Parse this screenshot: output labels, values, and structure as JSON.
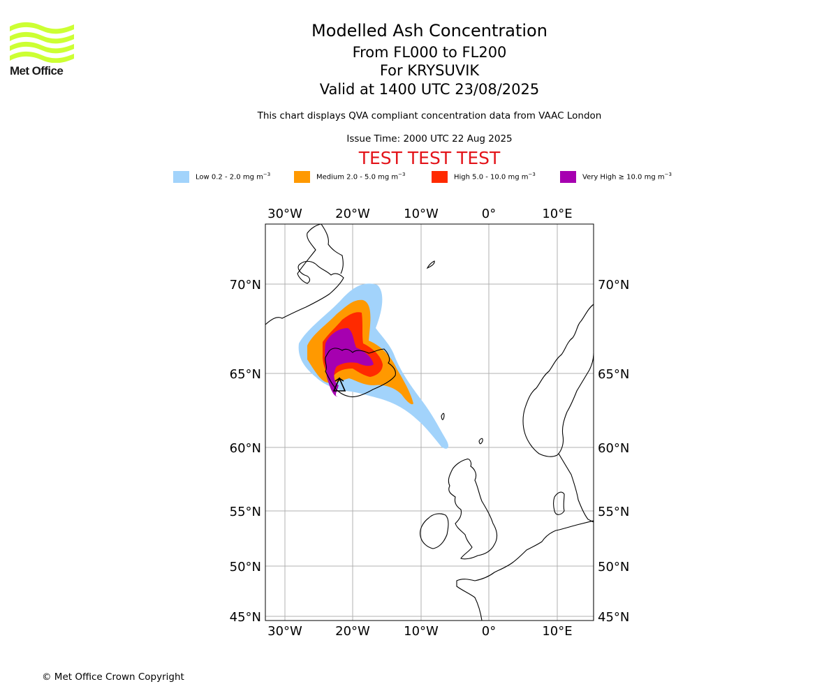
{
  "brand": {
    "name": "Met Office",
    "logo_color": "#ccff33"
  },
  "title": {
    "line1": "Modelled Ash Concentration",
    "line2": "From FL000 to FL200",
    "line3": "For KRYSUVIK",
    "line4": "Valid at 1400 UTC 23/08/2025"
  },
  "subtitle": "This chart displays QVA compliant concentration data from VAAC London",
  "issue_time": "Issue Time: 2000 UTC 22 Aug 2025",
  "test_banner": "TEST TEST TEST",
  "legend": [
    {
      "label": "Low 0.2 - 2.0 mg m",
      "color": "#a2d3fb"
    },
    {
      "label": "Medium 2.0 - 5.0 mg m",
      "color": "#ff9900"
    },
    {
      "label": "High 5.0 - 10.0 mg m",
      "color": "#ff2a00"
    },
    {
      "label": "Very High ≥ 10.0 mg m",
      "color": "#a600b0"
    }
  ],
  "legend_unit_exponent": "−3",
  "map": {
    "projection": "equirectangular",
    "gridlines": true,
    "longitude_ticks": [
      "30°W",
      "20°W",
      "10°W",
      "0°",
      "10°E"
    ],
    "latitude_ticks": [
      "70°N",
      "65°N",
      "60°N",
      "55°N",
      "50°N",
      "45°N"
    ],
    "volcano": "KRYSUVIK"
  },
  "copyright": "© Met Office Crown Copyright"
}
